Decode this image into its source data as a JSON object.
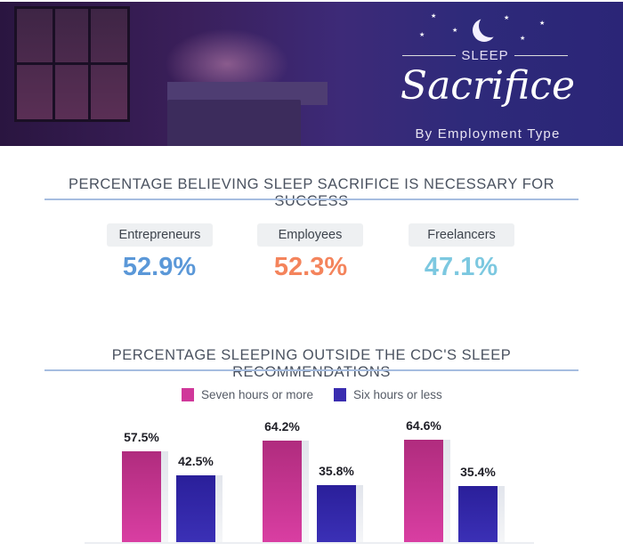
{
  "header": {
    "kicker": "SLEEP",
    "title": "Sacrifice",
    "subtitle": "By Employment Type"
  },
  "section1": {
    "title": "PERCENTAGE BELIEVING SLEEP SACRIFICE IS NECESSARY FOR SUCCESS",
    "stats": [
      {
        "label": "Entrepreneurs",
        "value": "52.9%",
        "color": "#5b98d8"
      },
      {
        "label": "Employees",
        "value": "52.3%",
        "color": "#f4845c"
      },
      {
        "label": "Freelancers",
        "value": "47.1%",
        "color": "#7cc8e0"
      }
    ]
  },
  "section2": {
    "title": "PERCENTAGE SLEEPING OUTSIDE THE CDC'S SLEEP RECOMMENDATIONS"
  },
  "chart_data": {
    "type": "bar",
    "title": "PERCENTAGE SLEEPING OUTSIDE THE CDC'S SLEEP RECOMMENDATIONS",
    "categories": [
      "",
      "",
      ""
    ],
    "series": [
      {
        "name": "Seven hours or more",
        "color": "#d0389a",
        "values": [
          57.5,
          64.2,
          64.6
        ],
        "labels": [
          "57.5%",
          "64.2%",
          "64.6%"
        ]
      },
      {
        "name": "Six hours or less",
        "color": "#3a2db0",
        "values": [
          42.5,
          35.8,
          35.4
        ],
        "labels": [
          "42.5%",
          "35.8%",
          "35.4%"
        ]
      }
    ],
    "ylim": [
      0,
      100
    ],
    "grid": false,
    "legend": "top-center"
  }
}
